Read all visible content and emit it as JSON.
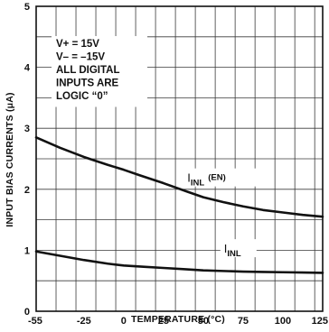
{
  "chart_data": {
    "type": "line",
    "title": "",
    "xlabel": "TEMPERATURE (°C)",
    "ylabel": "INPUT BIAS CURRENTS (μA)",
    "xlim": [
      -55,
      125
    ],
    "ylim": [
      0,
      5
    ],
    "x_ticks": [
      "-55",
      "-25",
      "0",
      "25",
      "50",
      "75",
      "100",
      "125"
    ],
    "x_tick_values": [
      -55,
      -25,
      0,
      25,
      50,
      75,
      100,
      125
    ],
    "y_ticks": [
      "0",
      "1",
      "2",
      "3",
      "4",
      "5"
    ],
    "y_tick_values": [
      0,
      1,
      2,
      3,
      4,
      5
    ],
    "grid": true,
    "note_lines": [
      "V+ = 15V",
      "V– = –15V",
      "ALL DIGITAL",
      "INPUTS ARE",
      "LOGIC “0”"
    ],
    "series": [
      {
        "name": "IINL (EN)",
        "label_main": "I",
        "label_sub": "INL",
        "label_suffix": "(EN)",
        "label_at": [
          40,
          2.12
        ],
        "x": [
          -55,
          -40,
          -25,
          -10,
          0,
          10,
          25,
          40,
          50,
          62.5,
          75,
          87.5,
          100,
          112.5,
          125
        ],
        "values": [
          2.85,
          2.68,
          2.53,
          2.4,
          2.32,
          2.23,
          2.1,
          1.96,
          1.87,
          1.79,
          1.72,
          1.66,
          1.62,
          1.58,
          1.55
        ]
      },
      {
        "name": "IINL",
        "label_main": "I",
        "label_sub": "INL",
        "label_suffix": "",
        "label_at": [
          63,
          0.96
        ],
        "x": [
          -55,
          -40,
          -25,
          -10,
          0,
          12.5,
          25,
          37.5,
          50,
          62.5,
          75,
          87.5,
          100,
          112.5,
          125
        ],
        "values": [
          0.98,
          0.91,
          0.84,
          0.78,
          0.75,
          0.73,
          0.71,
          0.69,
          0.67,
          0.66,
          0.65,
          0.645,
          0.64,
          0.635,
          0.63
        ]
      }
    ]
  }
}
